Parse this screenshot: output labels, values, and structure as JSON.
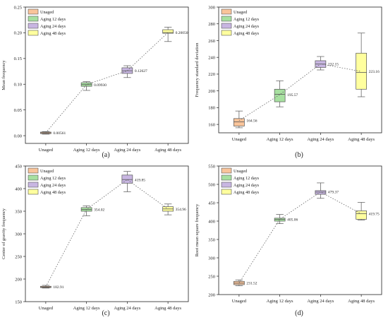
{
  "colors": {
    "Unaged": "#f9c49a",
    "Aging 12 days": "#a7e0a0",
    "Aging 24 days": "#c8b6e2",
    "Aging 48 days": "#ffff9e",
    "stroke": "#555555",
    "trend": "#666666"
  },
  "chart_data": [
    {
      "type": "box",
      "panel_label": "(a)",
      "xlabel": "",
      "ylabel": "Mean frequency",
      "ylim": [
        -0.015,
        0.25
      ],
      "yticks": [
        0.0,
        0.05,
        0.1,
        0.15,
        0.2,
        0.25
      ],
      "ytick_labels": [
        "0.00",
        "0.05",
        "0.10",
        "0.15",
        "0.20",
        "0.25"
      ],
      "categories": [
        "Unaged",
        "Aging 12 days",
        "Aging 24 days",
        "Aging 48 days"
      ],
      "legend": [
        "Unaged",
        "Aging 12 days",
        "Aging 24 days",
        "Aging 48 days"
      ],
      "legend_position": "top-left",
      "boxes": [
        {
          "min": 0.003,
          "q1": 0.004,
          "median": 0.0056,
          "q3": 0.007,
          "max": 0.008
        },
        {
          "min": 0.088,
          "q1": 0.096,
          "median": 0.0993,
          "q3": 0.103,
          "max": 0.105
        },
        {
          "min": 0.113,
          "q1": 0.121,
          "median": 0.1262,
          "q3": 0.132,
          "max": 0.136
        },
        {
          "min": 0.183,
          "q1": 0.199,
          "median": 0.2005,
          "q3": 0.206,
          "max": 0.211
        }
      ],
      "means": [
        0.00561,
        0.0993,
        0.12627,
        0.2005
      ],
      "mean_labels": [
        "0.00561",
        "0.09930",
        "0.12627",
        "0.20050"
      ]
    },
    {
      "type": "box",
      "panel_label": "(b)",
      "xlabel": "",
      "ylabel": "Frequency standard deviation",
      "ylim": [
        150,
        300
      ],
      "yticks": [
        160,
        180,
        200,
        220,
        240,
        260,
        280,
        300
      ],
      "ytick_labels": [
        "160",
        "180",
        "200",
        "220",
        "240",
        "260",
        "280",
        "300"
      ],
      "categories": [
        "Unaged",
        "Aging 12 days",
        "Aging 24 days",
        "Aging 48 days"
      ],
      "legend": [
        "Unaged",
        "Aging 12 days",
        "Aging 24 days",
        "Aging 48 days"
      ],
      "legend_position": "top-left",
      "boxes": [
        {
          "min": 156,
          "q1": 158,
          "median": 163,
          "q3": 167,
          "max": 176
        },
        {
          "min": 181,
          "q1": 187,
          "median": 196,
          "q3": 202,
          "max": 212
        },
        {
          "min": 225,
          "q1": 228,
          "median": 232,
          "q3": 236,
          "max": 241
        },
        {
          "min": 193,
          "q1": 202,
          "median": 222,
          "q3": 245,
          "max": 269
        }
      ],
      "means": [
        164.56,
        195.57,
        232.15,
        223.16
      ],
      "mean_labels": [
        "164.56",
        "195.57",
        "232.15",
        "223.16"
      ]
    },
    {
      "type": "box",
      "panel_label": "(c)",
      "xlabel": "",
      "ylabel": "Center of gravity frequency",
      "ylim": [
        150,
        450
      ],
      "yticks": [
        150,
        200,
        250,
        300,
        350,
        400,
        450
      ],
      "ytick_labels": [
        "150",
        "200",
        "250",
        "300",
        "350",
        "400",
        "450"
      ],
      "categories": [
        "Unaged",
        "Aging 12 days",
        "Aging 24 days",
        "Aging 48 days"
      ],
      "legend": [
        "Unaged",
        "Aging 12 days",
        "Aging 24 days",
        "Aging 48 days"
      ],
      "legend_position": "top-left",
      "boxes": [
        {
          "min": 180,
          "q1": 181,
          "median": 182.5,
          "q3": 184,
          "max": 186
        },
        {
          "min": 340,
          "q1": 350,
          "median": 354,
          "q3": 358,
          "max": 362
        },
        {
          "min": 393,
          "q1": 412,
          "median": 420,
          "q3": 430,
          "max": 438
        },
        {
          "min": 342,
          "q1": 350,
          "median": 355,
          "q3": 360,
          "max": 366
        }
      ],
      "means": [
        182.91,
        354.02,
        419.85,
        354.96
      ],
      "mean_labels": [
        "182.91",
        "354.02",
        "419.85",
        "354.96"
      ]
    },
    {
      "type": "box",
      "panel_label": "(d)",
      "xlabel": "",
      "ylabel": "Root mean square frequency",
      "ylim": [
        200,
        550
      ],
      "yticks": [
        200,
        250,
        300,
        350,
        400,
        450,
        500,
        550
      ],
      "ytick_labels": [
        "200",
        "250",
        "300",
        "350",
        "400",
        "450",
        "500",
        "550"
      ],
      "categories": [
        "Unaged",
        "Aging 12 days",
        "Aging 24 days",
        "Aging 48 days"
      ],
      "legend": [
        "Unaged",
        "Aging 12 days",
        "Aging 24 days",
        "Aging 48 days"
      ],
      "legend_position": "top-left",
      "boxes": [
        {
          "min": 224,
          "q1": 227,
          "median": 231,
          "q3": 236,
          "max": 240
        },
        {
          "min": 393,
          "q1": 400,
          "median": 405,
          "q3": 408,
          "max": 418
        },
        {
          "min": 462,
          "q1": 473,
          "median": 479,
          "q3": 483,
          "max": 504
        },
        {
          "min": 403,
          "q1": 405,
          "median": 420,
          "q3": 428,
          "max": 451
        }
      ],
      "means": [
        231.52,
        405.06,
        479.37,
        419.75
      ],
      "mean_labels": [
        "231.52",
        "405.06",
        "479.37",
        "419.75"
      ]
    }
  ]
}
